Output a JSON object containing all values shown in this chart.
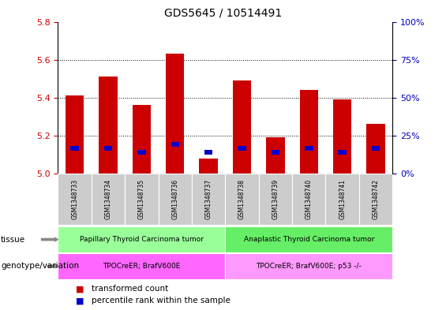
{
  "title": "GDS5645 / 10514491",
  "samples": [
    "GSM1348733",
    "GSM1348734",
    "GSM1348735",
    "GSM1348736",
    "GSM1348737",
    "GSM1348738",
    "GSM1348739",
    "GSM1348740",
    "GSM1348741",
    "GSM1348742"
  ],
  "red_values": [
    5.41,
    5.51,
    5.36,
    5.63,
    5.08,
    5.49,
    5.19,
    5.44,
    5.39,
    5.26
  ],
  "blue_values": [
    5.12,
    5.12,
    5.1,
    5.14,
    5.1,
    5.12,
    5.1,
    5.12,
    5.1,
    5.12
  ],
  "blue_heights": [
    0.025,
    0.025,
    0.025,
    0.025,
    0.025,
    0.025,
    0.025,
    0.025,
    0.025,
    0.025
  ],
  "ymin": 5.0,
  "ymax": 5.8,
  "yticks_left": [
    5.0,
    5.2,
    5.4,
    5.6,
    5.8
  ],
  "yticks_right": [
    0,
    25,
    50,
    75,
    100
  ],
  "tissue_groups": [
    {
      "label": "Papillary Thyroid Carcinoma tumor",
      "start": 0,
      "end": 5,
      "color": "#99ff99"
    },
    {
      "label": "Anaplastic Thyroid Carcinoma tumor",
      "start": 5,
      "end": 10,
      "color": "#66ee66"
    }
  ],
  "genotype_groups": [
    {
      "label": "TPOCreER; BrafV600E",
      "start": 0,
      "end": 5,
      "color": "#ff66ff"
    },
    {
      "label": "TPOCreER; BrafV600E; p53 -/-",
      "start": 5,
      "end": 10,
      "color": "#ff99ff"
    }
  ],
  "tissue_label": "tissue",
  "genotype_label": "genotype/variation",
  "legend_items": [
    {
      "color": "#cc0000",
      "label": "transformed count"
    },
    {
      "color": "#0000cc",
      "label": "percentile rank within the sample"
    }
  ],
  "bar_color": "#cc0000",
  "blue_color": "#0000cc",
  "bar_width": 0.55,
  "background_color": "#ffffff",
  "tick_color_left": "#cc0000",
  "tick_color_right": "#0000bb",
  "sample_box_color": "#cccccc",
  "row_label_color": "#000000",
  "arrow_color": "#888888"
}
